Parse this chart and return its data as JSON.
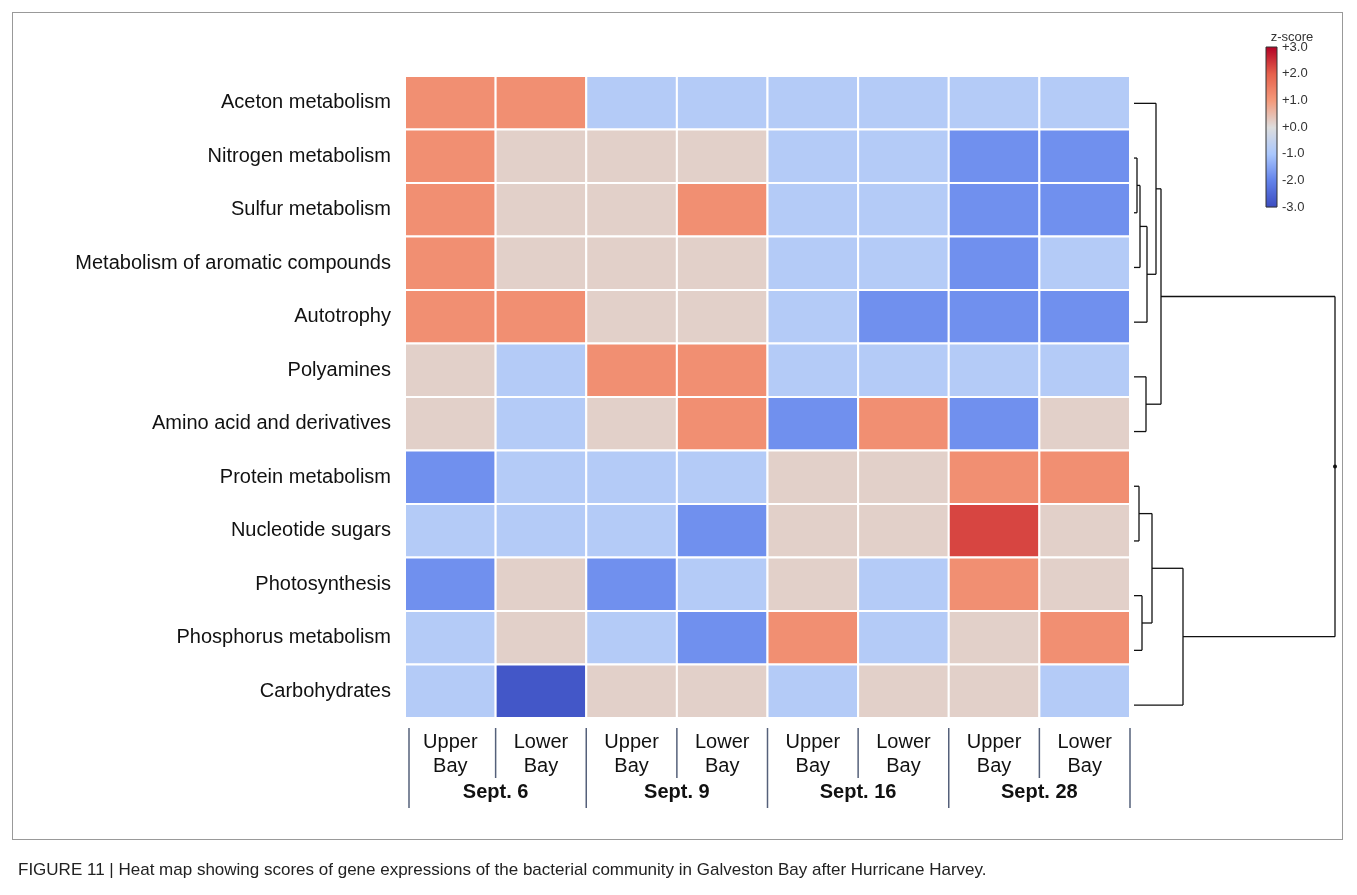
{
  "chart_data": {
    "type": "heatmap",
    "categories": [
      "Upper Bay",
      "Lower Bay",
      "Upper Bay",
      "Lower Bay",
      "Upper Bay",
      "Lower Bay",
      "Upper Bay",
      "Lower Bay"
    ],
    "y_categories": [
      "Aceton metabolism",
      "Nitrogen metabolism",
      "Sulfur metabolism",
      "Metabolism of aromatic compounds",
      "Autotrophy",
      "Polyamines",
      "Amino acid and derivatives",
      "Protein metabolism",
      "Nucleotide sugars",
      "Photosynthesis",
      "Phosphorus metabolism",
      "Carbohydrates"
    ],
    "cells": [
      [
        1.2,
        1.2,
        -0.8,
        -0.8,
        -0.8,
        -0.8,
        -0.8,
        -0.8
      ],
      [
        1.2,
        0.2,
        0.2,
        0.2,
        -0.8,
        -0.8,
        -1.8,
        -1.8
      ],
      [
        1.2,
        0.2,
        0.2,
        1.2,
        -0.8,
        -0.8,
        -1.8,
        -1.8
      ],
      [
        1.2,
        0.2,
        0.2,
        0.2,
        -0.8,
        -0.8,
        -1.8,
        -0.8
      ],
      [
        1.2,
        1.2,
        0.2,
        0.2,
        -0.8,
        -1.8,
        -1.8,
        -1.8
      ],
      [
        0.2,
        -0.8,
        1.2,
        1.2,
        -0.8,
        -0.8,
        -0.8,
        -0.8
      ],
      [
        0.2,
        -0.8,
        0.2,
        1.2,
        -1.8,
        1.2,
        -1.8,
        0.2
      ],
      [
        -1.8,
        -0.8,
        -0.8,
        -0.8,
        0.2,
        0.2,
        1.2,
        1.2
      ],
      [
        -0.8,
        -0.8,
        -0.8,
        -1.8,
        0.2,
        0.2,
        2.3,
        0.2
      ],
      [
        -1.8,
        0.2,
        -1.8,
        -0.8,
        0.2,
        -0.8,
        1.2,
        0.2
      ],
      [
        -0.8,
        0.2,
        -0.8,
        -1.8,
        1.2,
        -0.8,
        0.2,
        1.2
      ],
      [
        -0.8,
        -2.8,
        0.2,
        0.2,
        -0.8,
        0.2,
        0.2,
        -0.8
      ]
    ],
    "clabel": "z-score",
    "clim": [
      -3,
      3
    ],
    "cticks": [
      {
        "value": 3,
        "label": "+3.0"
      },
      {
        "value": 2,
        "label": "+2.0"
      },
      {
        "value": 1,
        "label": "+1.0"
      },
      {
        "value": 0,
        "label": "+0.0"
      },
      {
        "value": -1,
        "label": "-1.0"
      },
      {
        "value": -2,
        "label": "-2.0"
      },
      {
        "value": -3,
        "label": "-3.0"
      }
    ],
    "annotations": [
      "Sept. 6",
      "Sept. 9",
      "Sept. 16",
      "Sept. 28",
      "FIGURE 11 | Heat map showing scores of gene expressions of the bacterial community in Galveston Bay after Hurricane Harvey."
    ]
  }
}
